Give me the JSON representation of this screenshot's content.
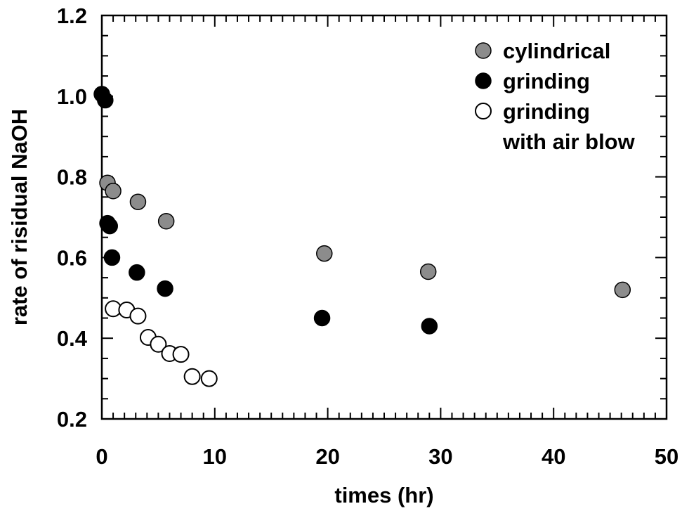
{
  "chart_data": {
    "type": "scatter",
    "title": "",
    "xlabel": "times (hr)",
    "ylabel": "rate of risidual NaOH",
    "xlim": [
      0,
      50
    ],
    "ylim": [
      0.2,
      1.2
    ],
    "x_ticks": [
      0,
      10,
      20,
      30,
      40,
      50
    ],
    "y_ticks": [
      0.2,
      0.4,
      0.6,
      0.8,
      1.0,
      1.2
    ],
    "x_tick_labels": [
      "0",
      "10",
      "20",
      "30",
      "40",
      "50"
    ],
    "y_tick_labels": [
      "0.2",
      "0.4",
      "0.6",
      "0.8",
      "1.0",
      "1.2"
    ],
    "x_minor_step": 1,
    "y_minor_step": 0.05,
    "grid": false,
    "legend_position": "top-right",
    "series": [
      {
        "name": "cylindrical",
        "marker": "filled-circle",
        "color": "#8c8c8c",
        "points": [
          {
            "x": 0.5,
            "y": 0.785
          },
          {
            "x": 1.0,
            "y": 0.765
          },
          {
            "x": 3.2,
            "y": 0.738
          },
          {
            "x": 5.7,
            "y": 0.69
          },
          {
            "x": 19.7,
            "y": 0.61
          },
          {
            "x": 28.9,
            "y": 0.565
          },
          {
            "x": 46.1,
            "y": 0.52
          }
        ]
      },
      {
        "name": "grinding",
        "marker": "filled-circle",
        "color": "#000000",
        "points": [
          {
            "x": 0.0,
            "y": 1.005
          },
          {
            "x": 0.3,
            "y": 0.99
          },
          {
            "x": 0.5,
            "y": 0.685
          },
          {
            "x": 0.7,
            "y": 0.678
          },
          {
            "x": 0.9,
            "y": 0.6
          },
          {
            "x": 3.1,
            "y": 0.563
          },
          {
            "x": 5.6,
            "y": 0.523
          },
          {
            "x": 19.5,
            "y": 0.45
          },
          {
            "x": 29.0,
            "y": 0.43
          }
        ]
      },
      {
        "name": "grinding\nwith air blow",
        "marker": "open-circle",
        "color": "#000000",
        "points": [
          {
            "x": 1.0,
            "y": 0.473
          },
          {
            "x": 2.2,
            "y": 0.47
          },
          {
            "x": 3.2,
            "y": 0.455
          },
          {
            "x": 4.1,
            "y": 0.402
          },
          {
            "x": 5.0,
            "y": 0.385
          },
          {
            "x": 6.0,
            "y": 0.362
          },
          {
            "x": 7.0,
            "y": 0.36
          },
          {
            "x": 8.0,
            "y": 0.305
          },
          {
            "x": 9.5,
            "y": 0.3
          }
        ]
      }
    ]
  }
}
